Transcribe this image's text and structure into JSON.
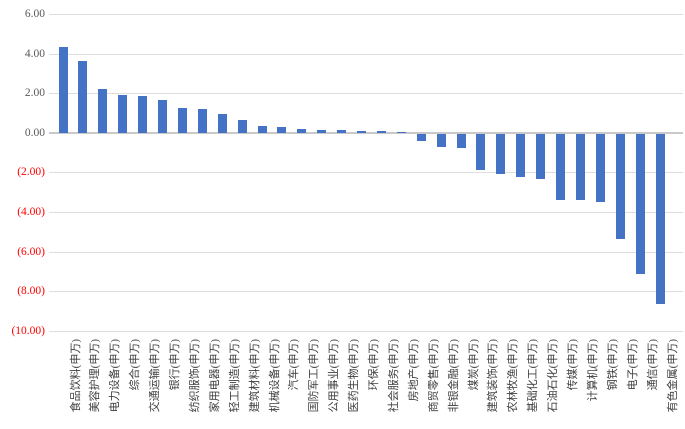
{
  "chart_data": {
    "type": "bar",
    "title": "",
    "xlabel": "",
    "ylabel": "",
    "categories": [
      "食品饮料(申万)",
      "美容护理(申万)",
      "电力设备(申万)",
      "综合(申万)",
      "交通运输(申万)",
      "银行(申万)",
      "纺织服饰(申万)",
      "家用电器(申万)",
      "轻工制造(申万)",
      "建筑材料(申万)",
      "机械设备(申万)",
      "汽车(申万)",
      "国防军工(申万)",
      "公用事业(申万)",
      "医药生物(申万)",
      "环保(申万)",
      "社会服务(申万)",
      "房地产(申万)",
      "商贸零售(申万)",
      "非银金融(申万)",
      "煤炭(申万)",
      "建筑装饰(申万)",
      "农林牧渔(申万)",
      "基础化工(申万)",
      "石油石化(申万)",
      "传媒(申万)",
      "计算机(申万)",
      "钢铁(申万)",
      "电子(申万)",
      "通信(申万)",
      "有色金属(申万)"
    ],
    "values": [
      4.35,
      3.62,
      2.21,
      1.93,
      1.88,
      1.67,
      1.26,
      1.2,
      0.93,
      0.67,
      0.36,
      0.29,
      0.18,
      0.14,
      0.12,
      0.1,
      0.08,
      0.06,
      -0.35,
      -0.64,
      -0.7,
      -1.84,
      -2.01,
      -2.17,
      -2.27,
      -3.32,
      -3.32,
      -3.44,
      -5.29,
      -7.09,
      -8.61
    ],
    "ylim": [
      -10,
      6
    ],
    "yticks": [
      6,
      4,
      2,
      0,
      -2,
      -4,
      -6,
      -8,
      -10
    ],
    "ytick_labels": [
      "6.00",
      "4.00",
      "2.00",
      "0.00",
      "(2.00)",
      "(4.00)",
      "(6.00)",
      "(8.00)",
      "(10.00)"
    ],
    "grid": true,
    "legend_position": "none",
    "bar_color": "#4472C4",
    "negative_tick_color": "#FF0000",
    "positive_tick_color": "#595959",
    "gridline_color": "#DEDEDE"
  }
}
